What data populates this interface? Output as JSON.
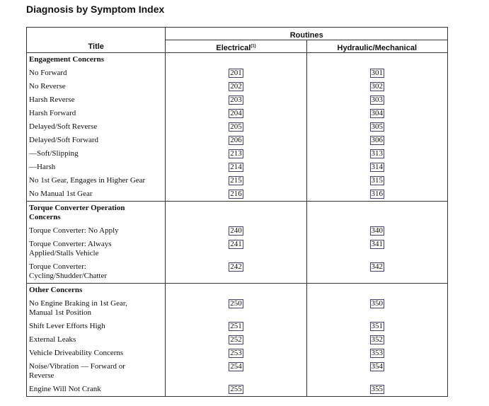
{
  "title": "Diagnosis by Symptom Index",
  "table": {
    "header": {
      "title": "Title",
      "routines": "Routines",
      "electrical": "Electrical",
      "electrical_note": "(1)",
      "hydraulic": "Hydraulic/Mechanical"
    },
    "sections": [
      {
        "heading": "Engagement Concerns",
        "rows": [
          [
            "No Forward",
            201,
            301
          ],
          [
            "No Reverse",
            202,
            302
          ],
          [
            "Harsh Reverse",
            203,
            303
          ],
          [
            "Harsh Forward",
            204,
            304
          ],
          [
            "Delayed/Soft Reverse",
            205,
            305
          ],
          [
            "Delayed/Soft Forward",
            206,
            306
          ],
          [
            "—Soft/Slipping",
            213,
            313
          ],
          [
            "—Harsh",
            214,
            314
          ],
          [
            "No 1st Gear, Engages in Higher Gear",
            215,
            315
          ],
          [
            "No Manual 1st Gear",
            216,
            316
          ]
        ]
      },
      {
        "heading": "Torque Converter Operation\nConcerns",
        "rows": [
          [
            "Torque Converter: No Apply",
            240,
            340
          ],
          [
            "Torque Converter: Always\nApplied/Stalls Vehicle",
            241,
            341
          ],
          [
            "Torque Converter:\nCycling/Shudder/Chatter",
            242,
            342
          ]
        ]
      },
      {
        "heading": "Other Concerns",
        "rows": [
          [
            "No Engine Braking in 1st Gear,\nManual 1st Position",
            250,
            350
          ],
          [
            "Shift Lever Efforts High",
            251,
            351
          ],
          [
            "External Leaks",
            252,
            352
          ],
          [
            "Vehicle Driveability Concerns",
            253,
            353
          ],
          [
            "Noise/Vibration — Forward or\nReverse",
            254,
            354
          ],
          [
            "Engine Will Not Crank",
            255,
            355
          ]
        ]
      }
    ]
  }
}
